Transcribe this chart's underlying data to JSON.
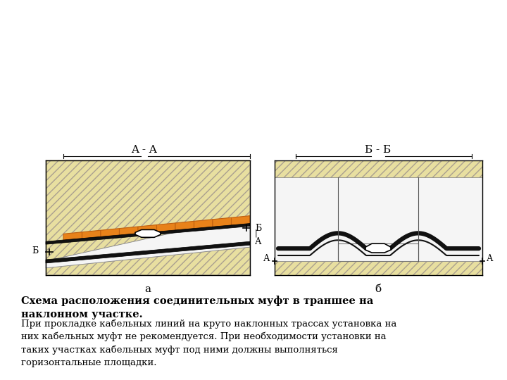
{
  "bg_color": "#ffffff",
  "sand_color": "#e8dfa0",
  "sand_hatch": "/",
  "orange_color": "#e8821a",
  "white_inner": "#f0f0f0",
  "cable_color": "#111111",
  "title": "Схема расположения соединительных муфт в траншее на\nнаклонном участке.",
  "body_text": "При прокладке кабельных линий на круто наклонных трассах установка на\nних кабельных муфт не рекомендуется. При необходимости установки на\nтаких участках кабельных муфт под ними должны выполняться\nгоризонтальные площадки.",
  "label_a": "a",
  "label_b": "б",
  "label_AA": "A - A",
  "label_BB": "Б - Б"
}
